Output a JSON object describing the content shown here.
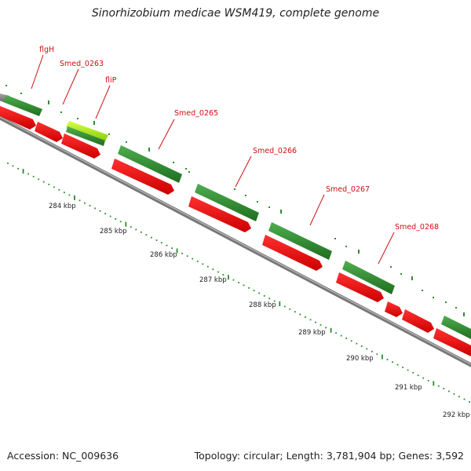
{
  "title": "Sinorhizobium medicae WSM419, complete genome",
  "footer": {
    "accession": "Accession: NC_009636",
    "summary": "Topology: circular; Length: 3,781,904 bp; Genes: 3,592"
  },
  "colors": {
    "forward_gene": "#2e8b2e",
    "reverse_gene": "#ee1111",
    "highlight_gene": "#99dd22",
    "backbone": "#888888",
    "tick": "#2e8b2e",
    "gene_label": "#cc1111"
  },
  "map": {
    "scale_start_kbp": 283.7,
    "scale_end_kbp": 292.7,
    "scale_labels": [
      "284 kbp",
      "285 kbp",
      "286 kbp",
      "287 kbp",
      "288 kbp",
      "289 kbp",
      "290 kbp",
      "291 kbp",
      "292 kbp"
    ],
    "gene_labels": [
      "flgH",
      "Smed_0263",
      "fliP",
      "Smed_0265",
      "Smed_0266",
      "Smed_0267",
      "Smed_0268"
    ]
  }
}
